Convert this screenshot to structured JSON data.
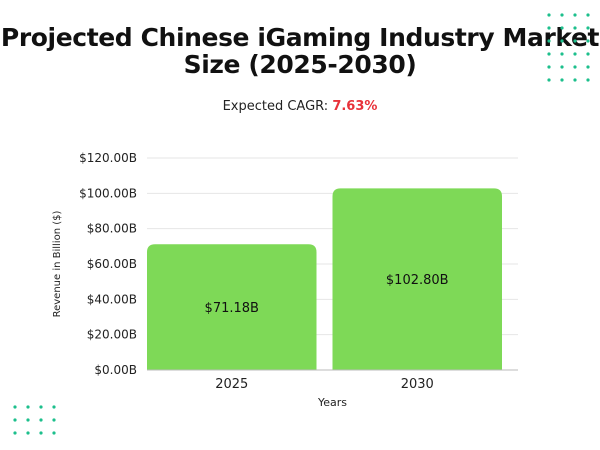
{
  "title_line1": "Projected Chinese iGaming Industry Market",
  "title_line2": "Size (2025-2030)",
  "cagr_label": "Expected CAGR: ",
  "cagr_value": "7.63%",
  "colors": {
    "bar": "#7ed957",
    "cagr": "#e8323a",
    "dots": "#1dbf8c",
    "grid": "#e6e6e6"
  },
  "chart_data": {
    "type": "bar",
    "categories": [
      "2025",
      "2030"
    ],
    "values": [
      71.18,
      102.8
    ],
    "value_labels": [
      "$71.18B",
      "$102.80B"
    ],
    "xlabel": "Years",
    "ylabel": "Revenue in Billion ($)",
    "ylim": [
      0,
      120
    ],
    "yticks": [
      0,
      20,
      40,
      60,
      80,
      100,
      120
    ],
    "ytick_labels": [
      "$0.00B",
      "$20.00B",
      "$40.00B",
      "$60.00B",
      "$80.00B",
      "$100.00B",
      "$120.00B"
    ],
    "grid": true,
    "legend": false
  }
}
